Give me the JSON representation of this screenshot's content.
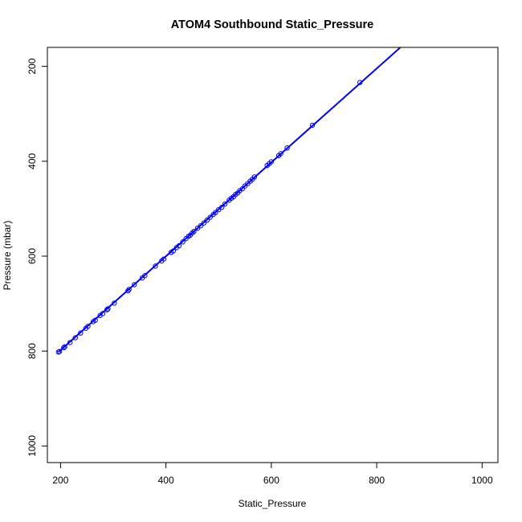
{
  "chart_data": {
    "type": "scatter",
    "title": "ATOM4 Southbound Static_Pressure",
    "xlabel": "Static_Pressure",
    "ylabel": "Pressure (mbar)",
    "xlim": [
      175,
      1030
    ],
    "ylim": [
      1035,
      160
    ],
    "y_axis_reversed": true,
    "x_ticks": [
      200,
      400,
      600,
      800,
      1000
    ],
    "y_ticks": [
      200,
      400,
      600,
      800,
      1000
    ],
    "grid": false,
    "legend": "none",
    "color": "#0000ff",
    "fit_line": {
      "x": [
        196,
        850
      ],
      "y": [
        802,
        155
      ]
    },
    "points": [
      {
        "x": 196,
        "y": 802
      },
      {
        "x": 198,
        "y": 801
      },
      {
        "x": 206,
        "y": 793
      },
      {
        "x": 208,
        "y": 791
      },
      {
        "x": 218,
        "y": 782
      },
      {
        "x": 228,
        "y": 772
      },
      {
        "x": 238,
        "y": 762
      },
      {
        "x": 248,
        "y": 752
      },
      {
        "x": 252,
        "y": 748
      },
      {
        "x": 262,
        "y": 738
      },
      {
        "x": 266,
        "y": 735
      },
      {
        "x": 275,
        "y": 725
      },
      {
        "x": 280,
        "y": 721
      },
      {
        "x": 288,
        "y": 713
      },
      {
        "x": 290,
        "y": 711
      },
      {
        "x": 302,
        "y": 699
      },
      {
        "x": 328,
        "y": 673
      },
      {
        "x": 330,
        "y": 670
      },
      {
        "x": 340,
        "y": 660
      },
      {
        "x": 355,
        "y": 646
      },
      {
        "x": 360,
        "y": 641
      },
      {
        "x": 380,
        "y": 621
      },
      {
        "x": 392,
        "y": 610
      },
      {
        "x": 396,
        "y": 606
      },
      {
        "x": 410,
        "y": 592
      },
      {
        "x": 414,
        "y": 589
      },
      {
        "x": 420,
        "y": 582
      },
      {
        "x": 425,
        "y": 578
      },
      {
        "x": 432,
        "y": 570
      },
      {
        "x": 438,
        "y": 563
      },
      {
        "x": 443,
        "y": 558
      },
      {
        "x": 446,
        "y": 556
      },
      {
        "x": 450,
        "y": 551
      },
      {
        "x": 453,
        "y": 548
      },
      {
        "x": 460,
        "y": 541
      },
      {
        "x": 466,
        "y": 536
      },
      {
        "x": 472,
        "y": 530
      },
      {
        "x": 478,
        "y": 524
      },
      {
        "x": 484,
        "y": 518
      },
      {
        "x": 490,
        "y": 512
      },
      {
        "x": 494,
        "y": 508
      },
      {
        "x": 500,
        "y": 502
      },
      {
        "x": 506,
        "y": 497
      },
      {
        "x": 512,
        "y": 490
      },
      {
        "x": 520,
        "y": 482
      },
      {
        "x": 524,
        "y": 478
      },
      {
        "x": 528,
        "y": 475
      },
      {
        "x": 532,
        "y": 470
      },
      {
        "x": 536,
        "y": 467
      },
      {
        "x": 540,
        "y": 462
      },
      {
        "x": 545,
        "y": 458
      },
      {
        "x": 550,
        "y": 452
      },
      {
        "x": 555,
        "y": 447
      },
      {
        "x": 560,
        "y": 442
      },
      {
        "x": 564,
        "y": 438
      },
      {
        "x": 568,
        "y": 433
      },
      {
        "x": 592,
        "y": 409
      },
      {
        "x": 596,
        "y": 405
      },
      {
        "x": 600,
        "y": 401
      },
      {
        "x": 614,
        "y": 388
      },
      {
        "x": 618,
        "y": 384
      },
      {
        "x": 630,
        "y": 372
      },
      {
        "x": 678,
        "y": 324
      },
      {
        "x": 768,
        "y": 234
      }
    ]
  }
}
